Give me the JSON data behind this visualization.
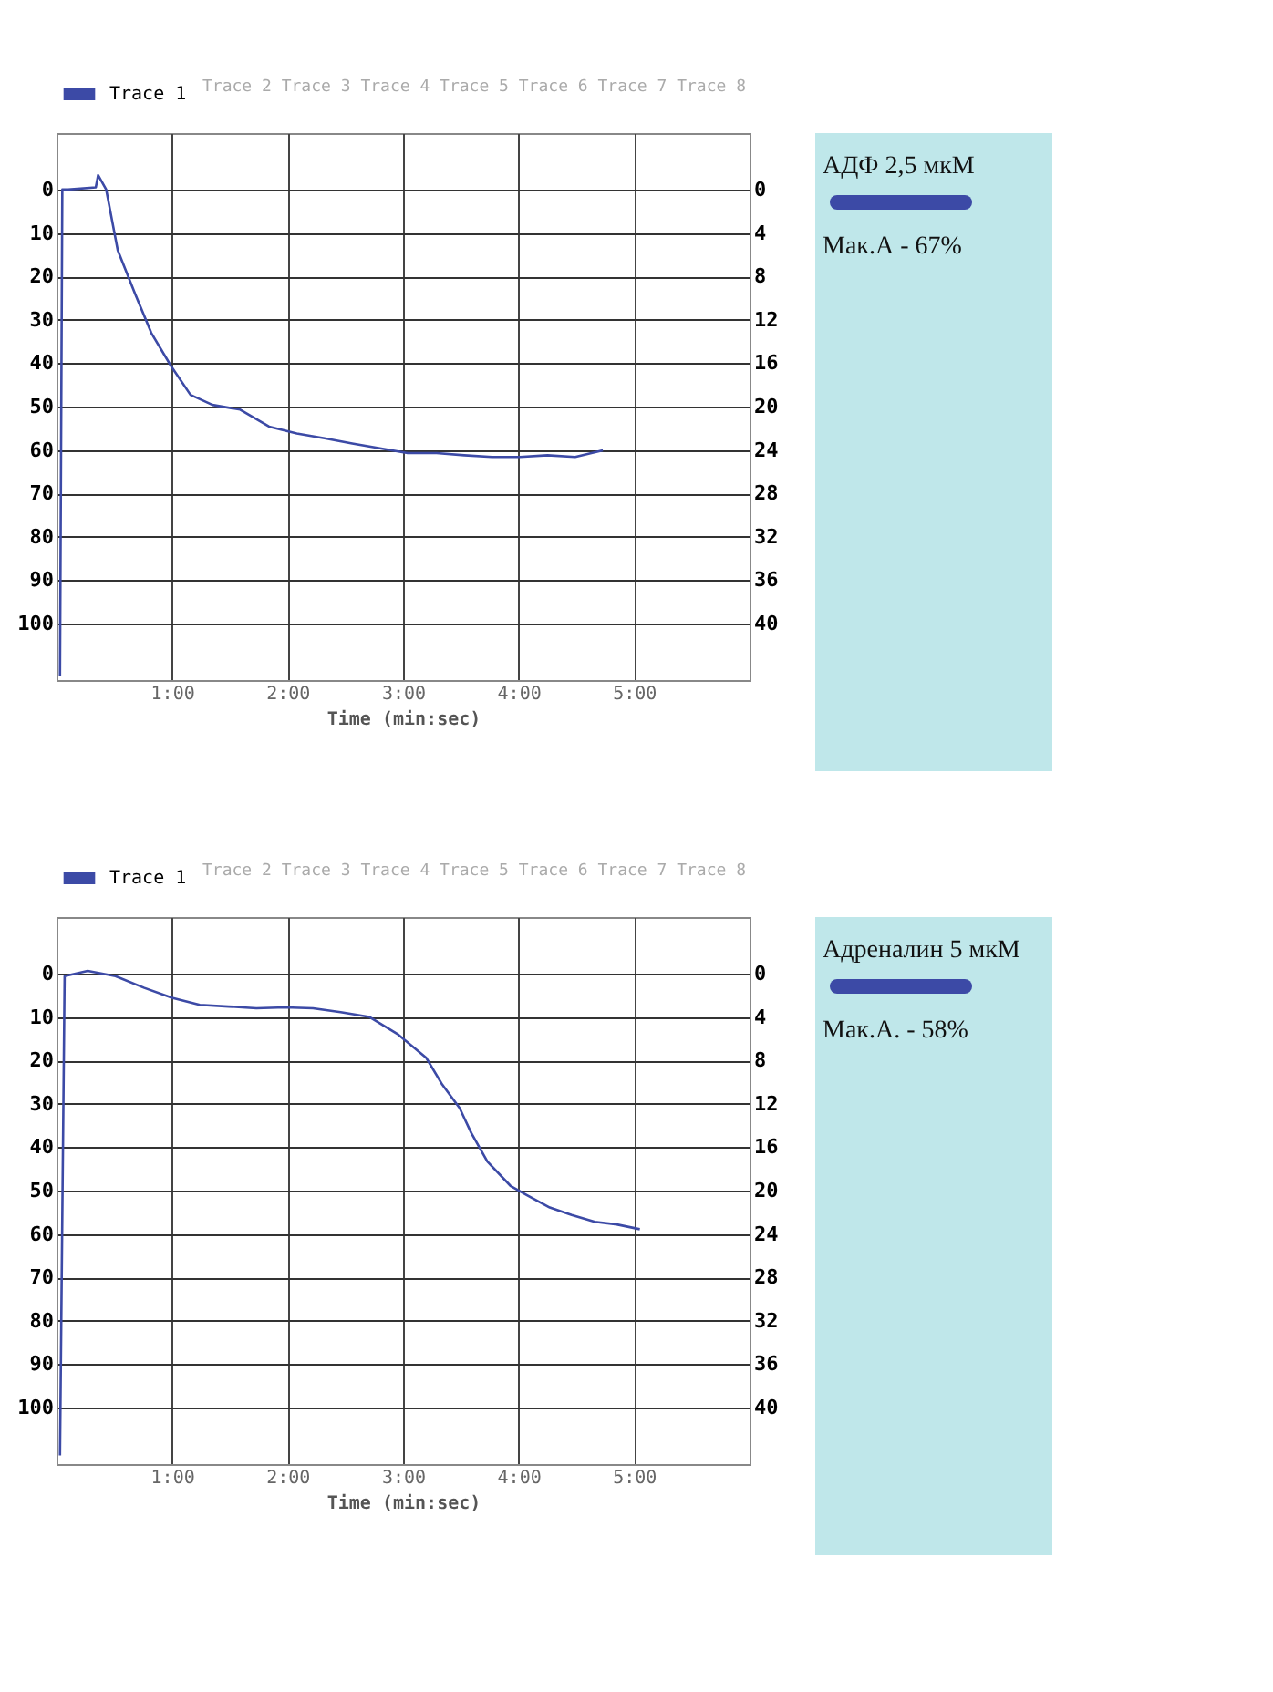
{
  "chart_data": [
    {
      "type": "line",
      "xlabel": "Time (min:sec)",
      "xlim": [
        0,
        6
      ],
      "xticks": [
        {
          "value": 1,
          "label": "1:00"
        },
        {
          "value": 2,
          "label": "2:00"
        },
        {
          "value": 3,
          "label": "3:00"
        },
        {
          "value": 4,
          "label": "4:00"
        },
        {
          "value": 5,
          "label": "5:00"
        }
      ],
      "ylim": [
        113,
        -13
      ],
      "yticks": [
        0,
        10,
        20,
        30,
        40,
        50,
        60,
        70,
        80,
        90,
        100
      ],
      "y2lim": [
        45.2,
        -5.2
      ],
      "y2ticks": [
        0,
        4,
        8,
        12,
        16,
        20,
        24,
        28,
        32,
        36,
        40
      ],
      "grid": true,
      "legend": "top left",
      "line_style": "solid",
      "annotations": [
        "Trace 2 Trace 3 Trace 4 Trace 5 Trace 6 Trace 7 Trace 8",
        "АДФ 2,5 мкМ",
        "Мак.А - 67%"
      ],
      "series": [
        {
          "name": "Trace 1",
          "color": "#3c4aa6",
          "x": [
            0.03,
            0.05,
            0.1,
            0.34,
            0.36,
            0.43,
            0.53,
            0.68,
            0.82,
            0.99,
            1.16,
            1.35,
            1.59,
            1.84,
            2.08,
            2.32,
            2.56,
            2.8,
            3.04,
            3.29,
            3.53,
            3.77,
            4.01,
            4.25,
            4.49,
            4.73
          ],
          "values": [
            112,
            0,
            0,
            -0.5,
            -3.3,
            0,
            14,
            24,
            33,
            40.6,
            47.3,
            49.6,
            50.7,
            54.6,
            56.2,
            57.3,
            58.5,
            59.6,
            60.7,
            60.7,
            61.2,
            61.6,
            61.6,
            61.2,
            61.6,
            60.1
          ]
        }
      ]
    },
    {
      "type": "line",
      "xlabel": "Time (min:sec)",
      "xlim": [
        0,
        6
      ],
      "xticks": [
        {
          "value": 1,
          "label": "1:00"
        },
        {
          "value": 2,
          "label": "2:00"
        },
        {
          "value": 3,
          "label": "3:00"
        },
        {
          "value": 4,
          "label": "4:00"
        },
        {
          "value": 5,
          "label": "5:00"
        }
      ],
      "ylim": [
        113,
        -13
      ],
      "yticks": [
        0,
        10,
        20,
        30,
        40,
        50,
        60,
        70,
        80,
        90,
        100
      ],
      "y2lim": [
        45.2,
        -5.2
      ],
      "y2ticks": [
        0,
        4,
        8,
        12,
        16,
        20,
        24,
        28,
        32,
        36,
        40
      ],
      "grid": true,
      "legend": "top left",
      "line_style": "solid",
      "annotations": [
        "Trace 2 Trace 3 Trace 4 Trace 5 Trace 6 Trace 7 Trace 8",
        "Адреналин 5 мкМ",
        "Мак.А. - 58%"
      ],
      "series": [
        {
          "name": "Trace 1",
          "color": "#3c4aa6",
          "x": [
            0.03,
            0.07,
            0.27,
            0.51,
            0.76,
            1.0,
            1.24,
            1.49,
            1.73,
            1.98,
            2.22,
            2.46,
            2.71,
            2.95,
            3.2,
            3.34,
            3.49,
            3.59,
            3.73,
            3.93,
            4.07,
            4.27,
            4.46,
            4.66,
            4.85,
            5.05
          ],
          "values": [
            111,
            0.6,
            -0.6,
            0.6,
            3.3,
            5.6,
            7.2,
            7.6,
            8,
            7.8,
            8,
            8.9,
            10,
            13.9,
            19.4,
            25.6,
            31,
            36.7,
            43.3,
            48.9,
            51,
            53.9,
            55.6,
            57.2,
            57.8,
            58.9
          ]
        }
      ]
    }
  ]
}
